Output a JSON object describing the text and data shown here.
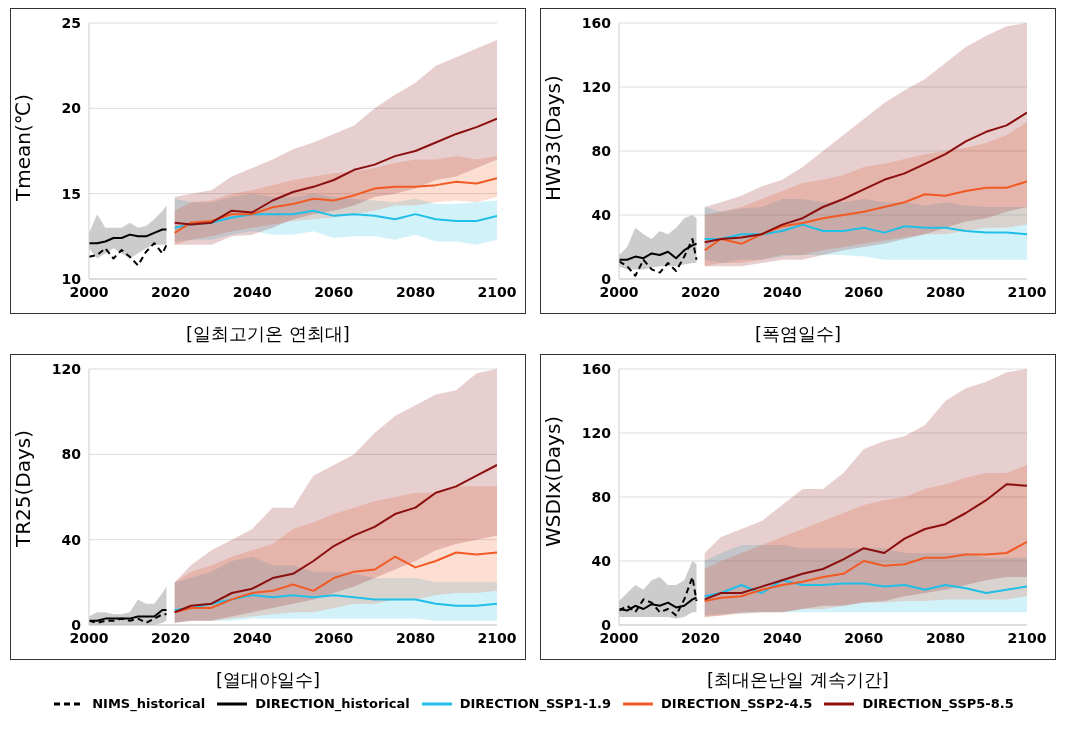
{
  "chart_data": [
    {
      "type": "line",
      "title": "[일최고기온 연최대]",
      "ylabel": "Tmean(℃)",
      "xlim": [
        2000,
        2100
      ],
      "xticks": [
        2000,
        2020,
        2040,
        2060,
        2080,
        2100
      ],
      "ylim": [
        10,
        25
      ],
      "yticks": [
        10,
        15,
        20,
        25
      ],
      "grid": "y",
      "series": [
        {
          "color": "#000000",
          "line_style": "dashed",
          "x": [
            2000,
            2002,
            2004,
            2006,
            2008,
            2010,
            2012,
            2014,
            2016,
            2018,
            2019
          ],
          "values": [
            11.3,
            11.4,
            11.8,
            11.2,
            11.7,
            11.3,
            10.8,
            11.6,
            12.1,
            11.5,
            12.0
          ]
        },
        {
          "color": "#000000",
          "x": [
            2000,
            2002,
            2004,
            2006,
            2008,
            2010,
            2012,
            2014,
            2016,
            2018,
            2019
          ],
          "values": [
            12.1,
            12.1,
            12.2,
            12.4,
            12.4,
            12.6,
            12.5,
            12.5,
            12.7,
            12.9,
            12.9
          ],
          "lower": [
            11.8,
            11.2,
            11.5,
            11.8,
            11.5,
            11.2,
            11.5,
            11.8,
            12.0,
            12.0,
            12.0
          ],
          "upper": [
            12.7,
            13.8,
            13.0,
            13.0,
            13.0,
            13.3,
            13.0,
            13.1,
            13.5,
            14.0,
            14.3
          ]
        },
        {
          "color": "#1fbfe8",
          "x": [
            2021,
            2025,
            2030,
            2035,
            2040,
            2045,
            2050,
            2055,
            2060,
            2065,
            2070,
            2075,
            2080,
            2085,
            2090,
            2095,
            2100
          ],
          "values": [
            13.0,
            13.2,
            13.3,
            13.6,
            13.8,
            13.8,
            13.8,
            14.0,
            13.7,
            13.8,
            13.7,
            13.5,
            13.8,
            13.5,
            13.4,
            13.4,
            13.7
          ],
          "lower": [
            12.2,
            12.3,
            12.3,
            12.6,
            12.8,
            12.6,
            12.6,
            12.8,
            12.4,
            12.5,
            12.5,
            12.3,
            12.6,
            12.2,
            12.2,
            12.0,
            12.3
          ],
          "upper": [
            14.7,
            14.5,
            14.5,
            14.8,
            15.0,
            14.8,
            14.8,
            15.0,
            14.8,
            14.7,
            14.6,
            14.5,
            14.7,
            14.4,
            14.4,
            14.5,
            14.6
          ]
        },
        {
          "color": "#f15a24",
          "x": [
            2021,
            2025,
            2030,
            2035,
            2040,
            2045,
            2050,
            2055,
            2060,
            2065,
            2070,
            2075,
            2080,
            2085,
            2090,
            2095,
            2100
          ],
          "values": [
            12.7,
            13.3,
            13.4,
            13.8,
            13.8,
            14.2,
            14.4,
            14.7,
            14.6,
            14.9,
            15.3,
            15.4,
            15.4,
            15.5,
            15.7,
            15.6,
            15.9
          ],
          "lower": [
            12.0,
            12.3,
            12.5,
            12.8,
            13.0,
            13.2,
            13.4,
            13.5,
            13.6,
            13.8,
            14.0,
            14.3,
            14.3,
            14.5,
            14.6,
            14.5,
            14.8
          ],
          "upper": [
            14.0,
            14.5,
            14.6,
            15.0,
            15.2,
            15.5,
            15.8,
            16.0,
            16.2,
            16.3,
            16.5,
            16.8,
            17.0,
            17.0,
            17.2,
            17.0,
            17.2
          ]
        },
        {
          "color": "#8b0f0f",
          "x": [
            2021,
            2025,
            2030,
            2035,
            2040,
            2045,
            2050,
            2055,
            2060,
            2065,
            2070,
            2075,
            2080,
            2085,
            2090,
            2095,
            2100
          ],
          "values": [
            13.3,
            13.2,
            13.3,
            14.0,
            13.9,
            14.6,
            15.1,
            15.4,
            15.8,
            16.4,
            16.7,
            17.2,
            17.5,
            18.0,
            18.5,
            18.9,
            19.4
          ],
          "lower": [
            12.0,
            12.0,
            12.0,
            12.5,
            12.6,
            13.0,
            13.5,
            13.8,
            14.0,
            14.3,
            14.8,
            15.0,
            15.3,
            15.8,
            16.0,
            16.5,
            17.0
          ],
          "upper": [
            14.8,
            15.0,
            15.2,
            16.0,
            16.5,
            17.0,
            17.6,
            18.0,
            18.5,
            19.0,
            20.0,
            20.8,
            21.5,
            22.5,
            23.0,
            23.5,
            24.0
          ]
        }
      ]
    },
    {
      "type": "line",
      "title": "[폭염일수]",
      "ylabel": "HW33(Days)",
      "xlim": [
        2000,
        2100
      ],
      "xticks": [
        2000,
        2020,
        2040,
        2060,
        2080,
        2100
      ],
      "ylim": [
        0,
        160
      ],
      "yticks": [
        0,
        40,
        80,
        120,
        160
      ],
      "grid": "y",
      "series": [
        {
          "color": "#000000",
          "line_style": "dashed",
          "x": [
            2000,
            2002,
            2004,
            2006,
            2008,
            2010,
            2012,
            2014,
            2016,
            2018,
            2019
          ],
          "values": [
            11,
            8,
            2,
            12,
            6,
            4,
            10,
            5,
            14,
            25,
            12
          ]
        },
        {
          "color": "#000000",
          "x": [
            2000,
            2002,
            2004,
            2006,
            2008,
            2010,
            2012,
            2014,
            2016,
            2018,
            2019
          ],
          "values": [
            12,
            12,
            14,
            13,
            16,
            15,
            17,
            13,
            18,
            21,
            22
          ],
          "lower": [
            8,
            6,
            6,
            6,
            7,
            8,
            8,
            8,
            9,
            10,
            10
          ],
          "upper": [
            15,
            20,
            32,
            28,
            25,
            30,
            28,
            32,
            38,
            40,
            38
          ]
        },
        {
          "color": "#1fbfe8",
          "x": [
            2021,
            2025,
            2030,
            2035,
            2040,
            2045,
            2050,
            2055,
            2060,
            2065,
            2070,
            2075,
            2080,
            2085,
            2090,
            2095,
            2100
          ],
          "values": [
            25,
            25,
            28,
            28,
            30,
            34,
            30,
            30,
            32,
            29,
            33,
            32,
            32,
            30,
            29,
            29,
            28
          ],
          "lower": [
            12,
            10,
            12,
            12,
            14,
            15,
            15,
            15,
            14,
            12,
            12,
            12,
            12,
            12,
            12,
            12,
            12
          ],
          "upper": [
            45,
            42,
            44,
            45,
            50,
            50,
            48,
            48,
            50,
            48,
            48,
            46,
            48,
            46,
            45,
            45,
            45
          ]
        },
        {
          "color": "#f15a24",
          "x": [
            2021,
            2025,
            2030,
            2035,
            2040,
            2045,
            2050,
            2055,
            2060,
            2065,
            2070,
            2075,
            2080,
            2085,
            2090,
            2095,
            2100
          ],
          "values": [
            18,
            25,
            22,
            28,
            33,
            35,
            38,
            40,
            42,
            45,
            48,
            53,
            52,
            55,
            57,
            57,
            61
          ],
          "lower": [
            8,
            10,
            10,
            12,
            15,
            15,
            18,
            20,
            22,
            24,
            26,
            28,
            28,
            30,
            32,
            32,
            34
          ],
          "upper": [
            40,
            42,
            45,
            50,
            55,
            60,
            62,
            65,
            70,
            72,
            75,
            78,
            80,
            82,
            85,
            90,
            98
          ]
        },
        {
          "color": "#8b0f0f",
          "x": [
            2021,
            2025,
            2030,
            2035,
            2040,
            2045,
            2050,
            2055,
            2060,
            2065,
            2070,
            2075,
            2080,
            2085,
            2090,
            2095,
            2100
          ],
          "values": [
            23,
            25,
            26,
            28,
            34,
            38,
            45,
            50,
            56,
            62,
            66,
            72,
            78,
            86,
            92,
            96,
            104
          ],
          "lower": [
            8,
            8,
            8,
            10,
            12,
            12,
            15,
            18,
            20,
            22,
            25,
            28,
            32,
            36,
            38,
            42,
            45
          ],
          "upper": [
            45,
            48,
            52,
            58,
            62,
            70,
            80,
            90,
            100,
            110,
            118,
            125,
            135,
            145,
            152,
            158,
            160
          ]
        }
      ]
    },
    {
      "type": "line",
      "title": "[열대야일수]",
      "ylabel": "TR25(Days)",
      "xlim": [
        2000,
        2100
      ],
      "xticks": [
        2000,
        2020,
        2040,
        2060,
        2080,
        2100
      ],
      "ylim": [
        0,
        120
      ],
      "yticks": [
        0,
        40,
        80,
        120
      ],
      "grid": "y",
      "series": [
        {
          "color": "#000000",
          "line_style": "dashed",
          "x": [
            2000,
            2002,
            2004,
            2006,
            2008,
            2010,
            2012,
            2014,
            2016,
            2018,
            2019
          ],
          "values": [
            2,
            1,
            2,
            2,
            3,
            2,
            3,
            1,
            3,
            5,
            5
          ]
        },
        {
          "color": "#000000",
          "x": [
            2000,
            2002,
            2004,
            2006,
            2008,
            2010,
            2012,
            2014,
            2016,
            2018,
            2019
          ],
          "values": [
            2,
            2,
            3,
            3,
            3,
            3,
            4,
            4,
            4,
            7,
            7
          ],
          "lower": [
            0,
            0,
            0,
            0,
            0,
            0,
            0,
            0,
            0,
            1,
            2
          ],
          "upper": [
            4,
            6,
            6,
            5,
            5,
            6,
            12,
            10,
            10,
            15,
            18
          ]
        },
        {
          "color": "#1fbfe8",
          "x": [
            2021,
            2025,
            2030,
            2035,
            2040,
            2045,
            2050,
            2055,
            2060,
            2065,
            2070,
            2075,
            2080,
            2085,
            2090,
            2095,
            2100
          ],
          "values": [
            7,
            8,
            10,
            12,
            14,
            13,
            14,
            13,
            14,
            13,
            12,
            12,
            12,
            10,
            9,
            9,
            10
          ],
          "lower": [
            1,
            2,
            2,
            2,
            3,
            3,
            3,
            3,
            3,
            3,
            3,
            3,
            3,
            2,
            2,
            2,
            2
          ],
          "upper": [
            20,
            22,
            25,
            30,
            32,
            28,
            28,
            25,
            25,
            24,
            22,
            22,
            22,
            20,
            20,
            20,
            20
          ]
        },
        {
          "color": "#f15a24",
          "x": [
            2021,
            2025,
            2030,
            2035,
            2040,
            2045,
            2050,
            2055,
            2060,
            2065,
            2070,
            2075,
            2080,
            2085,
            2090,
            2095,
            2100
          ],
          "values": [
            6,
            8,
            8,
            12,
            15,
            16,
            19,
            16,
            22,
            25,
            26,
            32,
            27,
            30,
            34,
            33,
            34
          ],
          "lower": [
            1,
            2,
            2,
            3,
            4,
            5,
            6,
            6,
            8,
            10,
            10,
            12,
            12,
            14,
            15,
            15,
            16
          ],
          "upper": [
            20,
            25,
            28,
            32,
            35,
            38,
            45,
            48,
            52,
            55,
            58,
            60,
            62,
            62,
            65,
            65,
            65
          ]
        },
        {
          "color": "#8b0f0f",
          "x": [
            2021,
            2025,
            2030,
            2035,
            2040,
            2045,
            2050,
            2055,
            2060,
            2065,
            2070,
            2075,
            2080,
            2085,
            2090,
            2095,
            2100
          ],
          "values": [
            6,
            9,
            10,
            15,
            17,
            22,
            24,
            30,
            37,
            42,
            46,
            52,
            55,
            62,
            65,
            70,
            75
          ],
          "lower": [
            1,
            2,
            2,
            4,
            6,
            8,
            10,
            12,
            15,
            18,
            22,
            26,
            30,
            35,
            38,
            40,
            42
          ],
          "upper": [
            20,
            28,
            35,
            40,
            45,
            55,
            55,
            70,
            75,
            80,
            90,
            98,
            103,
            108,
            110,
            118,
            120
          ]
        }
      ]
    },
    {
      "type": "line",
      "title": "[최대온난일 계속기간]",
      "ylabel": "WSDIx(Days)",
      "xlim": [
        2000,
        2100
      ],
      "xticks": [
        2000,
        2020,
        2040,
        2060,
        2080,
        2100
      ],
      "ylim": [
        0,
        160
      ],
      "yticks": [
        0,
        40,
        80,
        120,
        160
      ],
      "grid": "y",
      "legend": "bottom",
      "series": [
        {
          "name": "NIMS_historical",
          "color": "#000000",
          "line_style": "dashed",
          "x": [
            2000,
            2002,
            2004,
            2006,
            2008,
            2010,
            2012,
            2014,
            2016,
            2018,
            2019
          ],
          "values": [
            9,
            12,
            8,
            16,
            14,
            8,
            10,
            6,
            16,
            30,
            15
          ]
        },
        {
          "name": "DIRECTION_historical",
          "color": "#000000",
          "x": [
            2000,
            2002,
            2004,
            2006,
            2008,
            2010,
            2012,
            2014,
            2016,
            2018,
            2019
          ],
          "values": [
            10,
            9,
            12,
            10,
            13,
            12,
            14,
            11,
            12,
            16,
            17
          ],
          "lower": [
            5,
            5,
            5,
            5,
            5,
            5,
            5,
            4,
            5,
            8,
            8
          ],
          "upper": [
            15,
            20,
            25,
            22,
            28,
            30,
            25,
            25,
            28,
            40,
            38
          ]
        },
        {
          "name": "DIRECTION_SSP1-1.9",
          "color": "#1fbfe8",
          "x": [
            2021,
            2025,
            2030,
            2035,
            2040,
            2045,
            2050,
            2055,
            2060,
            2065,
            2070,
            2075,
            2080,
            2085,
            2090,
            2095,
            2100
          ],
          "values": [
            18,
            20,
            25,
            20,
            28,
            25,
            25,
            26,
            26,
            24,
            25,
            22,
            25,
            23,
            20,
            22,
            24
          ],
          "lower": [
            6,
            7,
            7,
            8,
            8,
            8,
            8,
            8,
            8,
            8,
            8,
            8,
            8,
            8,
            8,
            8,
            8
          ],
          "upper": [
            40,
            45,
            50,
            50,
            50,
            48,
            48,
            48,
            48,
            48,
            45,
            45,
            45,
            45,
            42,
            42,
            42
          ]
        },
        {
          "name": "DIRECTION_SSP2-4.5",
          "color": "#f15a24",
          "x": [
            2021,
            2025,
            2030,
            2035,
            2040,
            2045,
            2050,
            2055,
            2060,
            2065,
            2070,
            2075,
            2080,
            2085,
            2090,
            2095,
            2100
          ],
          "values": [
            15,
            17,
            18,
            22,
            25,
            27,
            30,
            32,
            40,
            37,
            38,
            42,
            42,
            44,
            44,
            45,
            52
          ],
          "lower": [
            5,
            6,
            7,
            8,
            8,
            10,
            10,
            12,
            14,
            14,
            15,
            15,
            16,
            16,
            16,
            16,
            18
          ],
          "upper": [
            35,
            40,
            45,
            50,
            55,
            60,
            65,
            70,
            75,
            78,
            80,
            85,
            88,
            92,
            95,
            95,
            100
          ]
        },
        {
          "name": "DIRECTION_SSP5-8.5",
          "color": "#8b0f0f",
          "x": [
            2021,
            2025,
            2030,
            2035,
            2040,
            2045,
            2050,
            2055,
            2060,
            2065,
            2070,
            2075,
            2080,
            2085,
            2090,
            2095,
            2100
          ],
          "values": [
            16,
            20,
            20,
            24,
            28,
            32,
            35,
            41,
            48,
            45,
            54,
            60,
            63,
            70,
            78,
            88,
            87
          ],
          "lower": [
            5,
            6,
            8,
            8,
            8,
            10,
            12,
            12,
            14,
            15,
            18,
            20,
            22,
            25,
            28,
            30,
            30
          ],
          "upper": [
            45,
            55,
            60,
            65,
            75,
            85,
            85,
            95,
            110,
            115,
            118,
            125,
            140,
            148,
            152,
            158,
            160
          ]
        }
      ]
    }
  ]
}
